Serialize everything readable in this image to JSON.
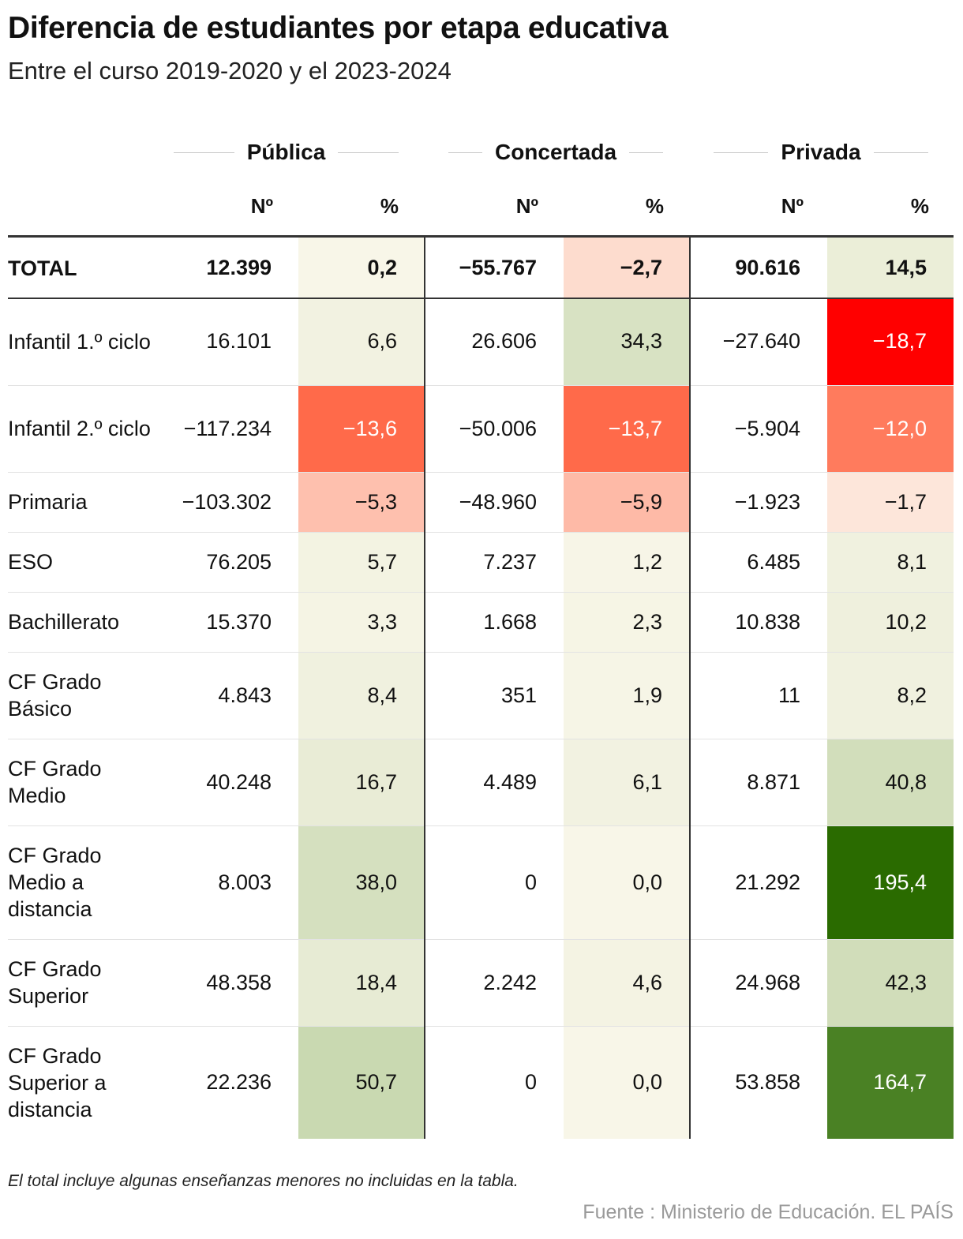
{
  "title": "Diferencia de estudiantes por etapa educativa",
  "subtitle": "Entre el curso 2019-2020 y el 2023-2024",
  "groups": [
    "Pública",
    "Concertada",
    "Privada"
  ],
  "col_n": "Nº",
  "col_pct": "%",
  "note": "El total incluye algunas enseñanzas menores no incluidas en la tabla.",
  "source": "Fuente : Ministerio de Educación. EL PAÍS",
  "colors": {
    "neg_strong": "#ff0000",
    "neg": "#ff6a4a",
    "neutral": "#f7f4e6",
    "pos": "#c5d6ac",
    "pos_strong": "#2a6b00"
  },
  "chart_data": {
    "type": "table",
    "columns": [
      "Pública Nº",
      "Pública %",
      "Concertada Nº",
      "Concertada %",
      "Privada Nº",
      "Privada %"
    ],
    "rows": [
      {
        "label": "TOTAL",
        "values": [
          "12.399",
          "0,2",
          "−55.767",
          "−2,7",
          "90.616",
          "14,5"
        ],
        "pct": [
          0.2,
          -2.7,
          14.5
        ]
      },
      {
        "label": "Infantil 1.º ciclo",
        "values": [
          "16.101",
          "6,6",
          "26.606",
          "34,3",
          "−27.640",
          "−18,7"
        ],
        "pct": [
          6.6,
          34.3,
          -18.7
        ]
      },
      {
        "label": "Infantil 2.º ciclo",
        "values": [
          "−117.234",
          "−13,6",
          "−50.006",
          "−13,7",
          "−5.904",
          "−12,0"
        ],
        "pct": [
          -13.6,
          -13.7,
          -12.0
        ]
      },
      {
        "label": "Primaria",
        "values": [
          "−103.302",
          "−5,3",
          "−48.960",
          "−5,9",
          "−1.923",
          "−1,7"
        ],
        "pct": [
          -5.3,
          -5.9,
          -1.7
        ]
      },
      {
        "label": "ESO",
        "values": [
          "76.205",
          "5,7",
          "7.237",
          "1,2",
          "6.485",
          "8,1"
        ],
        "pct": [
          5.7,
          1.2,
          8.1
        ]
      },
      {
        "label": "Bachillerato",
        "values": [
          "15.370",
          "3,3",
          "1.668",
          "2,3",
          "10.838",
          "10,2"
        ],
        "pct": [
          3.3,
          2.3,
          10.2
        ]
      },
      {
        "label": "CF Grado Básico",
        "values": [
          "4.843",
          "8,4",
          "351",
          "1,9",
          "11",
          "8,2"
        ],
        "pct": [
          8.4,
          1.9,
          8.2
        ]
      },
      {
        "label": "CF Grado Medio",
        "values": [
          "40.248",
          "16,7",
          "4.489",
          "6,1",
          "8.871",
          "40,8"
        ],
        "pct": [
          16.7,
          6.1,
          40.8
        ]
      },
      {
        "label": "CF Grado Medio a distancia",
        "values": [
          "8.003",
          "38,0",
          "0",
          "0,0",
          "21.292",
          "195,4"
        ],
        "pct": [
          38.0,
          0.0,
          195.4
        ]
      },
      {
        "label": "CF Grado Superior",
        "values": [
          "48.358",
          "18,4",
          "2.242",
          "4,6",
          "24.968",
          "42,3"
        ],
        "pct": [
          18.4,
          4.6,
          42.3
        ]
      },
      {
        "label": "CF Grado Superior a distancia",
        "values": [
          "22.236",
          "50,7",
          "0",
          "0,0",
          "53.858",
          "164,7"
        ],
        "pct": [
          50.7,
          0.0,
          164.7
        ]
      }
    ]
  }
}
